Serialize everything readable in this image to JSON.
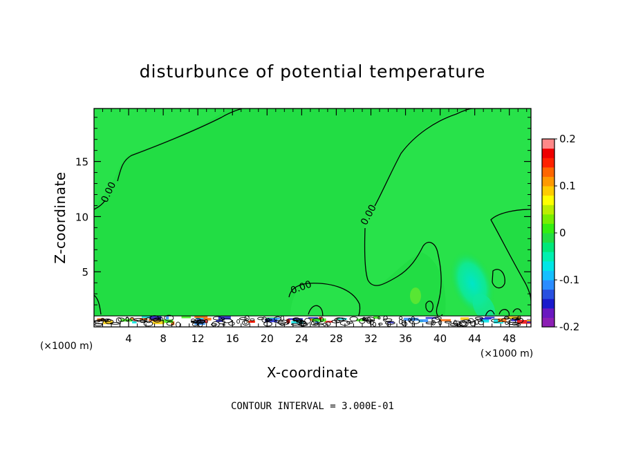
{
  "chart_data": {
    "type": "heatmap",
    "title": "disturbunce of potential temperature",
    "xlabel": "X-coordinate",
    "ylabel": "Z-coordinate",
    "x_unit_left": "(×1000 m)",
    "x_unit_right": "(×1000 m)",
    "x_ticks": [
      "4",
      "8",
      "12",
      "16",
      "20",
      "24",
      "28",
      "32",
      "36",
      "40",
      "44",
      "48"
    ],
    "y_ticks": [
      "5",
      "10",
      "15"
    ],
    "xlim": [
      0,
      50.5
    ],
    "ylim": [
      0,
      19.8
    ],
    "contour_labels": [
      "0.00",
      "0.00",
      "0.00"
    ],
    "contour_interval_text": "CONTOUR INTERVAL = 3.000E-01",
    "colorbar": {
      "range": [
        -0.2,
        0.2
      ],
      "tick_labels": [
        "0.2",
        "0.1",
        "0",
        "-0.1",
        "-0.2"
      ],
      "tick_values": [
        0.2,
        0.1,
        0,
        -0.1,
        -0.2
      ],
      "colors": [
        "#8c1fb4",
        "#6a18c0",
        "#1a1acc",
        "#2850e0",
        "#2a8cff",
        "#14bfff",
        "#00e6e6",
        "#00f0b0",
        "#00e87a",
        "#22dd44",
        "#33ee11",
        "#77ee00",
        "#bbee00",
        "#ffff00",
        "#ffcc00",
        "#ff9900",
        "#ff6600",
        "#ff2200",
        "#ee0000",
        "#ff8888"
      ]
    }
  }
}
